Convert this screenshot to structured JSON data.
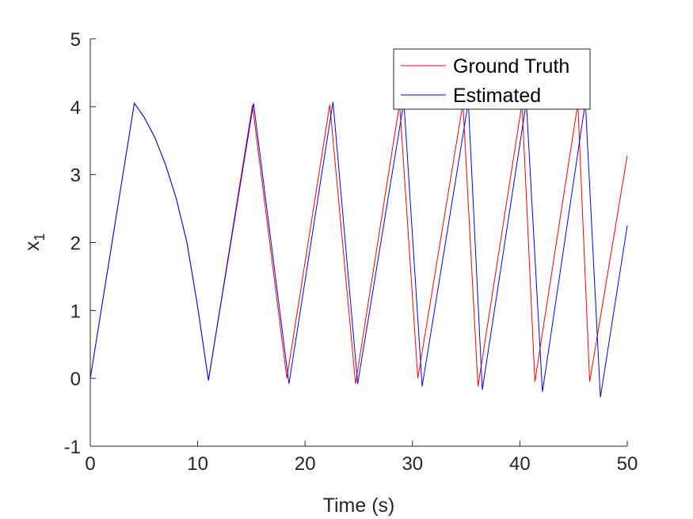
{
  "chart_data": {
    "type": "line",
    "xlabel": "Time (s)",
    "ylabel": "x",
    "ylabel_subscript": "1",
    "xlim": [
      0,
      50
    ],
    "ylim": [
      -1,
      5
    ],
    "xticks": [
      "0",
      "10",
      "20",
      "30",
      "40",
      "50"
    ],
    "yticks": [
      "-1",
      "0",
      "1",
      "2",
      "3",
      "4",
      "5"
    ],
    "grid": false,
    "legend_position": "top-right",
    "series": [
      {
        "name": "Ground Truth",
        "color": "#ff0000",
        "x": [
          0,
          4.1,
          5,
          6,
          7,
          8,
          9,
          10,
          11,
          15.1,
          18.3,
          22.3,
          24.7,
          28.8,
          30.5,
          34.7,
          36.1,
          40.2,
          41.4,
          45.4,
          46.5,
          50
        ],
        "y": [
          0,
          4.05,
          3.85,
          3.55,
          3.15,
          2.65,
          2.0,
          1.05,
          -0.03,
          4.02,
          0.0,
          4.03,
          -0.08,
          4.05,
          0.0,
          4.05,
          -0.12,
          4.05,
          -0.05,
          4.05,
          -0.05,
          3.28
        ]
      },
      {
        "name": "Estimated",
        "color": "#0000ff",
        "x": [
          0,
          4.1,
          5,
          6,
          7,
          8,
          9,
          10,
          11,
          15.2,
          18.5,
          22.6,
          24.9,
          29.2,
          30.9,
          35.2,
          36.5,
          40.6,
          42.1,
          46.1,
          47.5,
          50
        ],
        "y": [
          0,
          4.05,
          3.85,
          3.55,
          3.15,
          2.65,
          2.0,
          1.05,
          -0.03,
          4.05,
          -0.08,
          4.07,
          -0.08,
          4.07,
          -0.12,
          4.07,
          -0.17,
          4.07,
          -0.2,
          4.07,
          -0.28,
          2.25
        ]
      }
    ]
  }
}
